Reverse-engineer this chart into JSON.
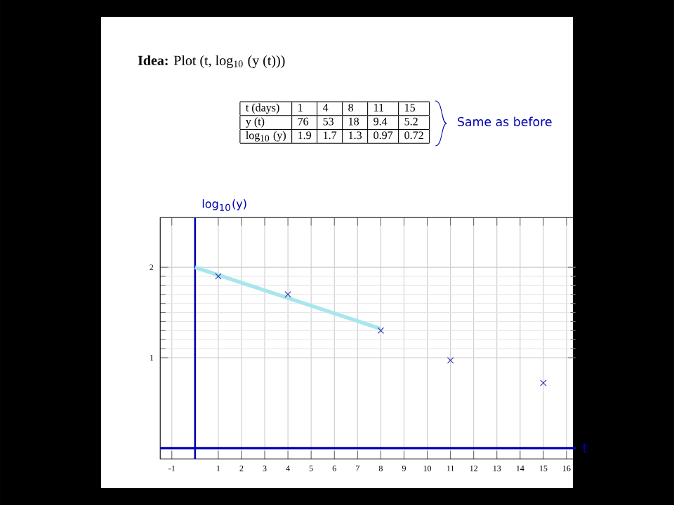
{
  "chart_data": {
    "type": "scatter",
    "title": "**Idea:** Plot (t, log$_{10}$ (y (t)))",
    "xlabel": "t",
    "ylabel": "log$_{10}$(y)",
    "annotations": [
      "Same as before",
      "t (days)",
      "1",
      "4",
      "8",
      "11",
      "15",
      "y (t)",
      "76",
      "53",
      "18",
      "9.4",
      "5.2",
      "log$_{10}$ (y)",
      "1.9",
      "1.7",
      "1.3",
      "0.97",
      "0.72"
    ],
    "series": [
      {
        "x": [
          1,
          4,
          8,
          11,
          15
        ],
        "values": [
          1.9,
          1.7,
          1.3,
          0.97,
          0.72
        ],
        "color": "#2b2bb0"
      },
      {
        "type": "line",
        "x": [
          0,
          8
        ],
        "values": [
          2,
          1.32
        ],
        "color": "#a8e6ee",
        "marker": "none"
      }
    ],
    "xlim": [
      -1.5,
      16.4
    ],
    "ylim": [
      -0.12,
      2.55
    ],
    "xticks": [
      -1,
      {
        "value": 0,
        "label": null
      },
      1,
      2,
      3,
      4,
      5,
      6,
      7,
      8,
      9,
      10,
      11,
      12,
      13,
      14,
      15,
      16
    ],
    "yticks": [
      1,
      2
    ],
    "ref_lines": [
      {
        "axis": "x",
        "value": 0,
        "color": "#0000b2"
      },
      {
        "axis": "y",
        "value": 0,
        "color": "#0000b2"
      }
    ],
    "grid": true,
    "marker": "cross"
  }
}
